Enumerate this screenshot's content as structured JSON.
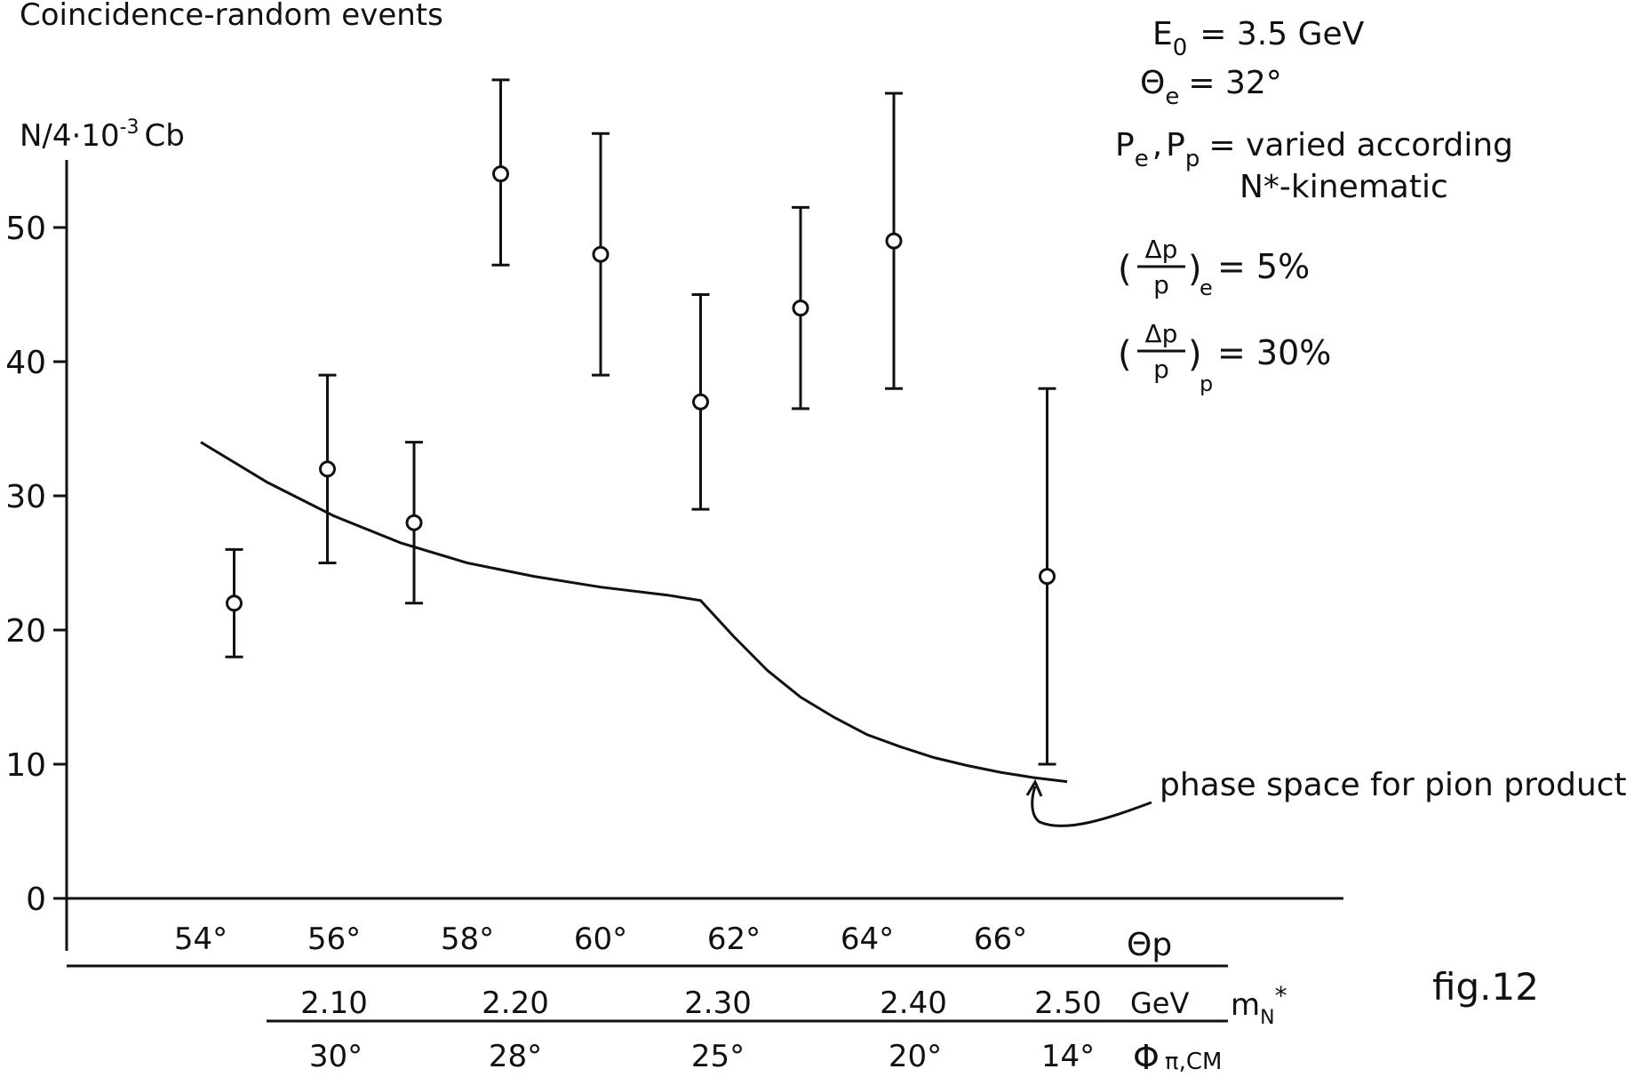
{
  "title": "Coincidence-random events",
  "ylabel": {
    "base": "N/4·10",
    "exp": "-3",
    "unit": "Cb"
  },
  "figure_label": "fig.12",
  "colors": {
    "ink": "#111111",
    "background": "#ffffff"
  },
  "params": {
    "e0": {
      "symbol": "E",
      "sub": "0",
      "value": "= 3.5 GeV"
    },
    "theta_e": {
      "symbol": "Θ",
      "sub": "e",
      "value": "= 32°"
    },
    "momenta": {
      "p1": "P",
      "p1_sub": "e",
      "sep": ",",
      "p2": "P",
      "p2_sub": "p",
      "value": "= varied according",
      "cont": "N*-kinematic"
    },
    "res_e": {
      "num": "Δp",
      "den": "p",
      "sub": "e",
      "value": "= 5%"
    },
    "res_p": {
      "num": "Δp",
      "den": "p",
      "sub": "p",
      "value": "= 30%"
    }
  },
  "curve_annotation": "phase space for pion production",
  "axes": {
    "y_ticks": [
      "0",
      "10",
      "20",
      "30",
      "40",
      "50"
    ],
    "theta_p": {
      "label": "Θp",
      "ticks": [
        "54°",
        "56°",
        "58°",
        "60°",
        "62°",
        "64°",
        "66°"
      ]
    },
    "mass": {
      "unit": "GeV",
      "label": "m",
      "label_sub": "N",
      "label_sup": "*",
      "ticks": [
        "2.10",
        "2.20",
        "2.30",
        "2.40",
        "2.50"
      ]
    },
    "phi": {
      "label": "Φ",
      "label_sub": "π,CM",
      "ticks": [
        "30°",
        "28°",
        "25°",
        "20°",
        "14°"
      ]
    }
  },
  "chart_data": {
    "type": "scatter",
    "title": "Coincidence-random events",
    "xlabel": "Θp",
    "ylabel": "N/4·10^-3 Cb",
    "xlim": [
      52.1,
      67.5
    ],
    "ylim": [
      0,
      55
    ],
    "x_ticks": [
      54,
      56,
      58,
      60,
      62,
      64,
      66
    ],
    "y_ticks": [
      0,
      10,
      20,
      30,
      40,
      50
    ],
    "points": [
      {
        "x": 54.5,
        "y": 22,
        "err_low": 18,
        "err_high": 26
      },
      {
        "x": 55.9,
        "y": 32,
        "err_low": 25,
        "err_high": 39
      },
      {
        "x": 57.2,
        "y": 28,
        "err_low": 22,
        "err_high": 34
      },
      {
        "x": 58.5,
        "y": 54,
        "err_low": 47.2,
        "err_high": 61
      },
      {
        "x": 60.0,
        "y": 48,
        "err_low": 39,
        "err_high": 57
      },
      {
        "x": 61.5,
        "y": 37,
        "err_low": 29,
        "err_high": 45
      },
      {
        "x": 63.0,
        "y": 44,
        "err_low": 36.5,
        "err_high": 51.5
      },
      {
        "x": 64.4,
        "y": 49,
        "err_low": 38,
        "err_high": 60
      },
      {
        "x": 66.7,
        "y": 24,
        "err_low": 10,
        "err_high": 38
      }
    ],
    "curve": {
      "name": "phase space for pion production",
      "x": [
        54.0,
        55.0,
        56.0,
        57.0,
        58.0,
        59.0,
        60.0,
        61.0,
        61.5,
        62.0,
        62.5,
        63.0,
        63.5,
        64.0,
        64.5,
        65.0,
        65.5,
        66.0,
        66.5,
        67.0
      ],
      "y": [
        34,
        31,
        28.5,
        26.5,
        25,
        24,
        23.2,
        22.6,
        22.2,
        19.5,
        17,
        15,
        13.5,
        12.2,
        11.3,
        10.5,
        9.9,
        9.4,
        9.0,
        8.7
      ]
    },
    "secondary_axes": [
      {
        "label": "m_N*",
        "unit": "GeV",
        "ticks": [
          2.1,
          2.2,
          2.3,
          2.4,
          2.5
        ],
        "at_theta_p": [
          55.9,
          58.5,
          61.5,
          64.4,
          66.7
        ]
      },
      {
        "label": "Φ π,CM",
        "ticks": [
          "30°",
          "28°",
          "25°",
          "20°",
          "14°"
        ],
        "at_theta_p": [
          55.9,
          58.5,
          61.5,
          64.4,
          66.7
        ]
      }
    ]
  }
}
